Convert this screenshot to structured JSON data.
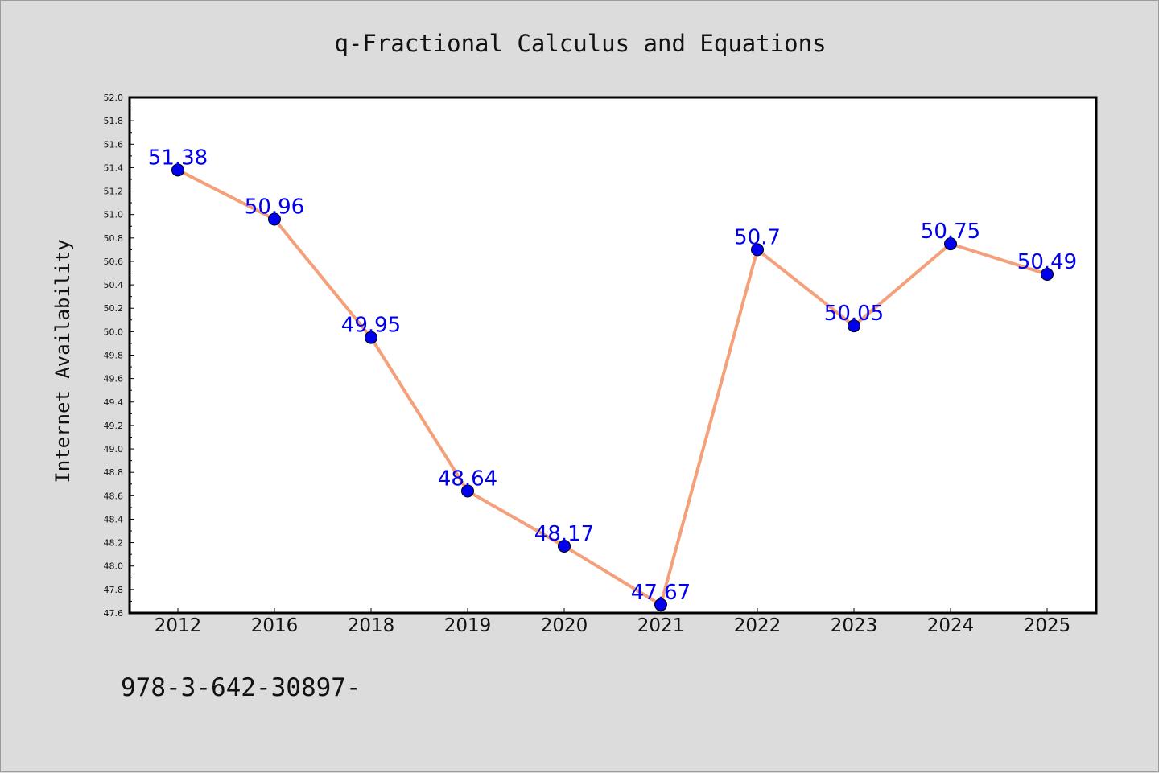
{
  "chart_data": {
    "type": "line",
    "title": "q-Fractional Calculus and Equations",
    "xlabel": "",
    "ylabel": "Internet Availability",
    "categories": [
      "2012",
      "2016",
      "2018",
      "2019",
      "2020",
      "2021",
      "2022",
      "2023",
      "2024",
      "2025"
    ],
    "series": [
      {
        "values": [
          51.38,
          50.96,
          49.95,
          48.64,
          48.17,
          47.67,
          50.7,
          50.05,
          50.75,
          50.49
        ],
        "data_labels": [
          "51.38",
          "50.96",
          "49.95",
          "48.64",
          "48.17",
          "47.67",
          "50.7",
          "50.05",
          "50.75",
          "50.49"
        ],
        "line_color": "#f4a07a",
        "marker_color": "#0000ee",
        "label_color": "#0000ee"
      }
    ],
    "ylim": [
      47.6,
      52.0
    ],
    "yticks": [
      "47.6",
      "47.8",
      "48.0",
      "48.2",
      "48.4",
      "48.6",
      "48.8",
      "49.0",
      "49.2",
      "49.4",
      "49.6",
      "49.8",
      "50.0",
      "50.2",
      "50.4",
      "50.6",
      "50.8",
      "51.0",
      "51.2",
      "51.4",
      "51.6",
      "51.8",
      "52.0"
    ],
    "grid": false,
    "legend": "none",
    "background": "#dcdcdc",
    "plot_background": "#ffffff"
  },
  "footer_text": "978-3-642-30897-"
}
